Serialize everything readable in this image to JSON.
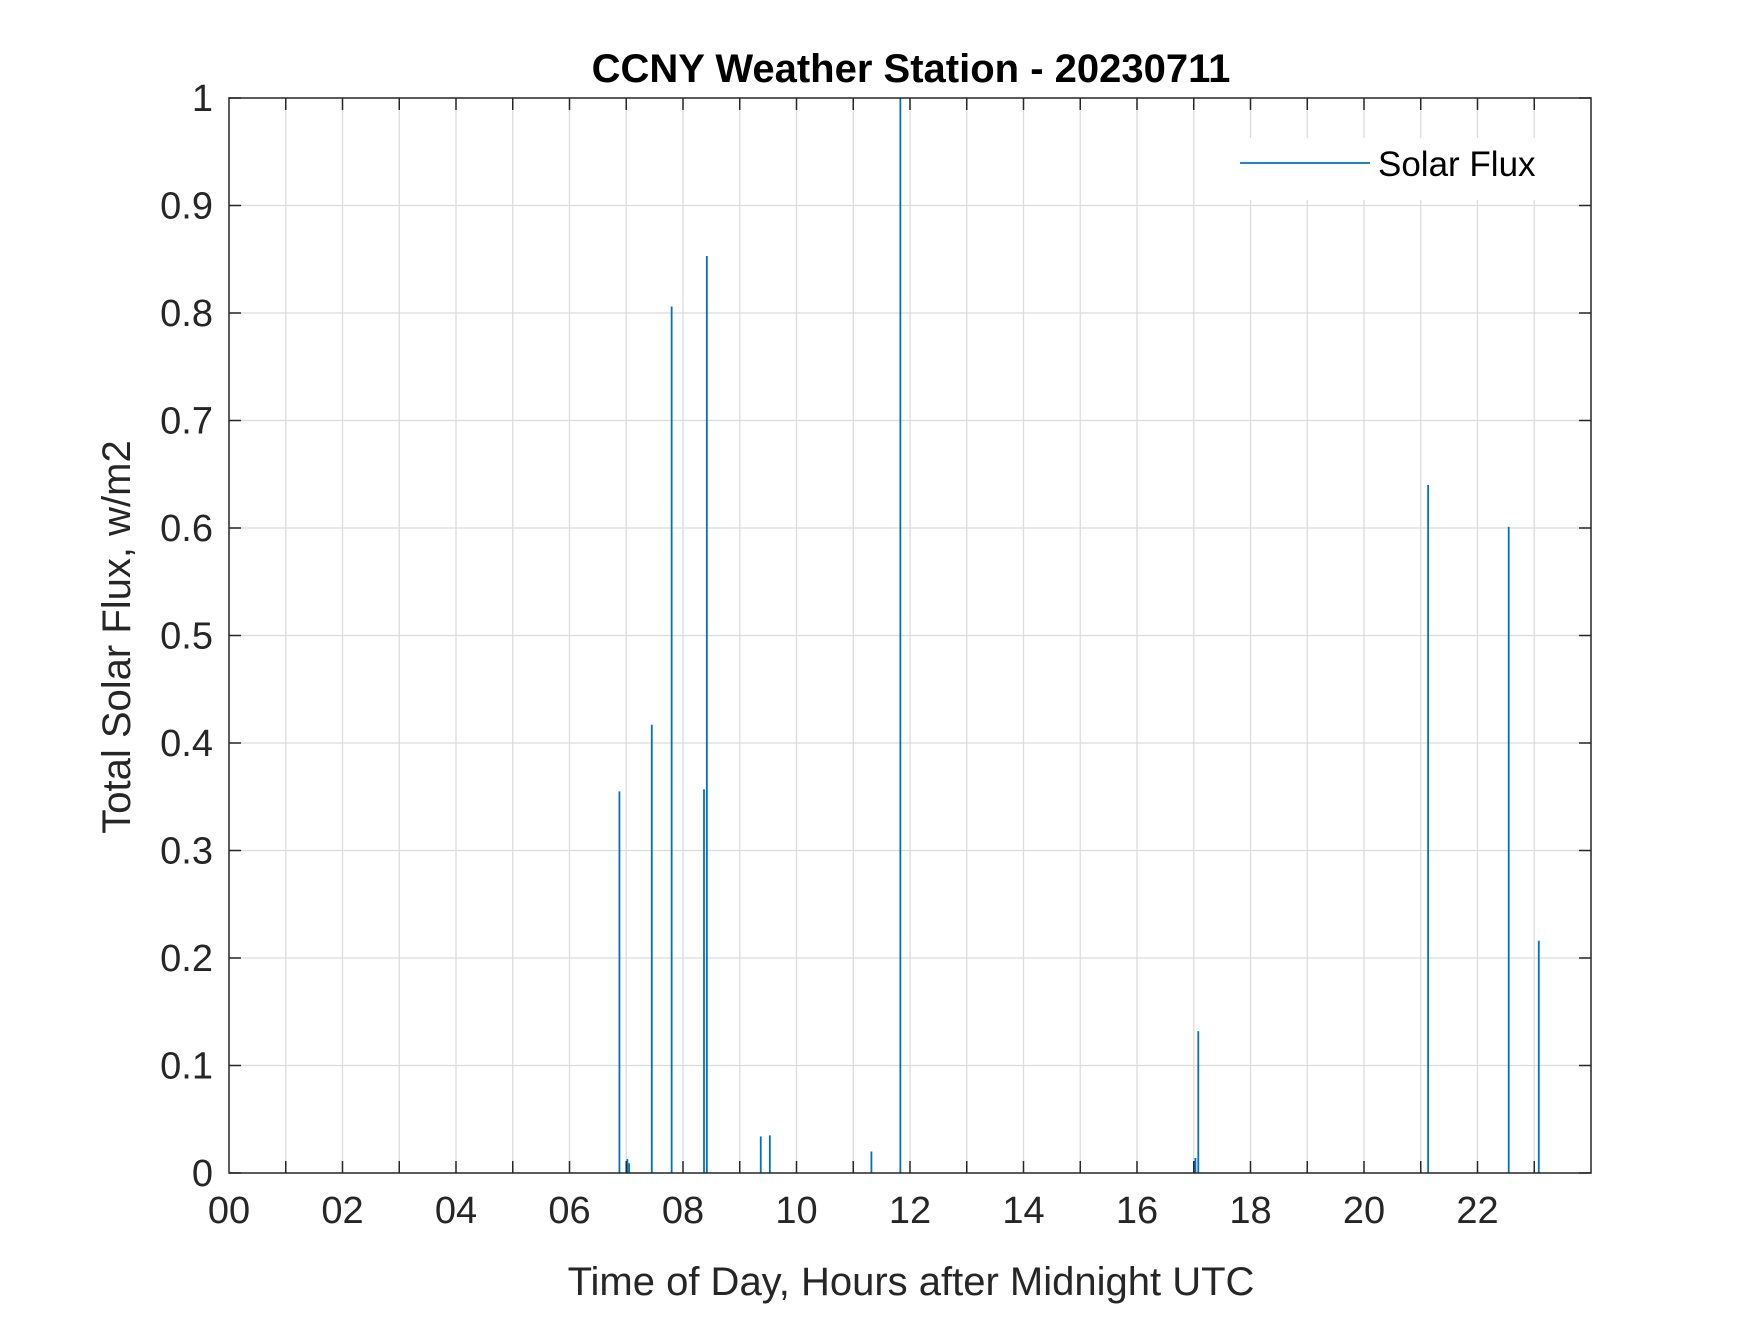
{
  "chart_data": {
    "type": "line",
    "title": "CCNY Weather Station - 20230711",
    "xlabel": "Time of Day, Hours after Midnight UTC",
    "ylabel": "Total Solar Flux, w/m2",
    "xlim": [
      0,
      24
    ],
    "ylim": [
      0,
      1
    ],
    "x_ticks": [
      0,
      2,
      4,
      6,
      8,
      10,
      12,
      14,
      16,
      18,
      20,
      22
    ],
    "x_tick_labels": [
      "00",
      "02",
      "04",
      "06",
      "08",
      "10",
      "12",
      "14",
      "16",
      "18",
      "20",
      "22"
    ],
    "y_ticks": [
      0,
      0.1,
      0.2,
      0.3,
      0.4,
      0.5,
      0.6,
      0.7,
      0.8,
      0.9,
      1
    ],
    "y_tick_labels": [
      "0",
      "0.1",
      "0.2",
      "0.3",
      "0.4",
      "0.5",
      "0.6",
      "0.7",
      "0.8",
      "0.9",
      "1"
    ],
    "grid": true,
    "legend_position": "top-right",
    "series": [
      {
        "name": "Solar Flux",
        "color": "#0072BD",
        "spikes": [
          {
            "x": 6.88,
            "y": 0.355
          },
          {
            "x": 7.02,
            "y": 0.013
          },
          {
            "x": 7.05,
            "y": 0.009
          },
          {
            "x": 7.45,
            "y": 0.417
          },
          {
            "x": 7.8,
            "y": 0.806
          },
          {
            "x": 8.37,
            "y": 0.357
          },
          {
            "x": 8.42,
            "y": 0.853
          },
          {
            "x": 9.37,
            "y": 0.034
          },
          {
            "x": 9.53,
            "y": 0.035
          },
          {
            "x": 11.32,
            "y": 0.02
          },
          {
            "x": 11.83,
            "y": 1.0
          },
          {
            "x": 17.03,
            "y": 0.014
          },
          {
            "x": 17.08,
            "y": 0.132
          },
          {
            "x": 21.13,
            "y": 0.64
          },
          {
            "x": 22.55,
            "y": 0.601
          },
          {
            "x": 23.08,
            "y": 0.216
          }
        ]
      }
    ]
  }
}
